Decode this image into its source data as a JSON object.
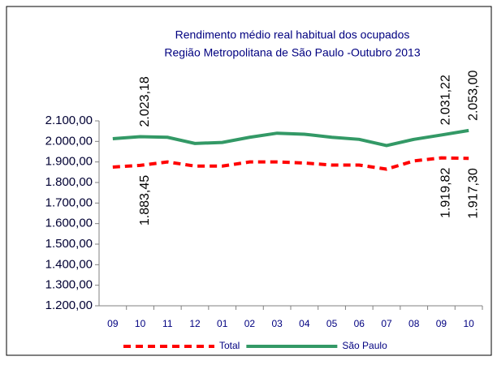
{
  "chart_data": {
    "type": "line",
    "title": "Rendimento médio real habitual dos ocupados",
    "subtitle": "Região Metropolitana de São Paulo -Outubro 2013",
    "categories": [
      "09",
      "10",
      "11",
      "12",
      "01",
      "02",
      "03",
      "04",
      "05",
      "06",
      "07",
      "08",
      "09",
      "10"
    ],
    "series": [
      {
        "name": "Total",
        "color": "#ff0000",
        "dashed": true,
        "values": [
          1875,
          1883.45,
          1900,
          1880,
          1880,
          1900,
          1900,
          1895,
          1885,
          1885,
          1865,
          1905,
          1919.82,
          1917.3
        ],
        "value_labels": [
          null,
          "1.883,45",
          null,
          null,
          null,
          null,
          null,
          null,
          null,
          null,
          null,
          null,
          "1.919,82",
          "1.917,30"
        ],
        "label_side": "below"
      },
      {
        "name": "São Paulo",
        "color": "#339966",
        "dashed": false,
        "values": [
          2013,
          2023.18,
          2020,
          1990,
          1995,
          2020,
          2040,
          2035,
          2020,
          2010,
          1980,
          2010,
          2031.22,
          2053.0
        ],
        "value_labels": [
          null,
          "2.023,18",
          null,
          null,
          null,
          null,
          null,
          null,
          null,
          null,
          null,
          null,
          "2.031,22",
          "2.053,00"
        ],
        "label_side": "above"
      }
    ],
    "ylim": [
      1200,
      2100
    ],
    "yticks": [
      {
        "value": 1200,
        "label": "1.200,00"
      },
      {
        "value": 1300,
        "label": "1.300,00"
      },
      {
        "value": 1400,
        "label": "1.400,00"
      },
      {
        "value": 1500,
        "label": "1.500,00"
      },
      {
        "value": 1600,
        "label": "1.600,00"
      },
      {
        "value": 1700,
        "label": "1.700,00"
      },
      {
        "value": 1800,
        "label": "1.800,00"
      },
      {
        "value": 1900,
        "label": "1.900,00"
      },
      {
        "value": 2000,
        "label": "2.000,00"
      },
      {
        "value": 2100,
        "label": "2.100,00"
      }
    ],
    "grid": false,
    "legend": "bottom"
  }
}
